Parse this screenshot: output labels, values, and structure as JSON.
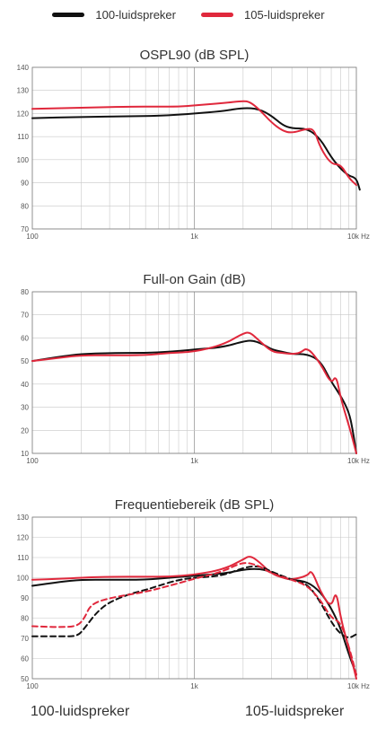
{
  "legend": {
    "items": [
      {
        "label": "100-luidspreker",
        "color": "#111111"
      },
      {
        "label": "105-luidspreker",
        "color": "#e0283c"
      }
    ]
  },
  "footer": {
    "left": "100-luidspreker",
    "right": "105-luidspreker"
  },
  "chart_data": [
    {
      "type": "line",
      "title": "OSPL90 (dB SPL)",
      "x_scale": "log",
      "xlim": [
        100,
        10000
      ],
      "ylim": [
        70,
        140
      ],
      "x_ticks": [
        {
          "v": 100,
          "label": "100"
        },
        {
          "v": 1000,
          "label": "1k"
        },
        {
          "v": 10000,
          "label": "10k Hz"
        }
      ],
      "y_ticks": [
        70,
        80,
        90,
        100,
        110,
        120,
        130,
        140
      ],
      "grid": true,
      "series": [
        {
          "name": "100-luidspreker",
          "color": "#111111",
          "dashed": false,
          "x": [
            100,
            200,
            400,
            600,
            800,
            1000,
            1500,
            2000,
            2500,
            3000,
            3500,
            4000,
            5000,
            6000,
            7000,
            8000,
            9000,
            10000,
            10500
          ],
          "y": [
            118,
            118.5,
            118.8,
            119,
            119.5,
            120,
            121,
            122.5,
            122,
            119,
            115,
            113.5,
            113.5,
            109,
            101,
            96,
            93,
            92,
            87
          ]
        },
        {
          "name": "105-luidspreker",
          "color": "#e0283c",
          "dashed": false,
          "x": [
            100,
            200,
            400,
            600,
            800,
            1000,
            1500,
            2000,
            2200,
            2500,
            3000,
            3500,
            4000,
            5000,
            5500,
            6000,
            7000,
            8000,
            9000,
            10000
          ],
          "y": [
            122,
            122.5,
            123,
            123,
            123,
            123.5,
            124.5,
            125.5,
            125,
            122,
            116,
            112.5,
            111.5,
            113.5,
            113,
            105,
            98,
            98,
            92,
            89
          ]
        }
      ]
    },
    {
      "type": "line",
      "title": "Full-on Gain (dB)",
      "x_scale": "log",
      "xlim": [
        100,
        10000
      ],
      "ylim": [
        10,
        80
      ],
      "x_ticks": [
        {
          "v": 100,
          "label": "100"
        },
        {
          "v": 1000,
          "label": "1k"
        },
        {
          "v": 10000,
          "label": "10k Hz"
        }
      ],
      "y_ticks": [
        10,
        20,
        30,
        40,
        50,
        60,
        70,
        80
      ],
      "grid": true,
      "series": [
        {
          "name": "100-luidspreker",
          "color": "#111111",
          "dashed": false,
          "x": [
            100,
            150,
            200,
            300,
            500,
            700,
            1000,
            1500,
            2000,
            2300,
            2700,
            3000,
            3500,
            4000,
            5000,
            6000,
            7000,
            8000,
            9000,
            9500,
            10000
          ],
          "y": [
            50,
            52,
            53,
            53.5,
            53.5,
            54,
            55,
            56,
            58.5,
            59,
            57,
            55,
            54,
            53,
            53,
            50,
            41,
            35,
            28,
            20,
            10
          ]
        },
        {
          "name": "105-luidspreker",
          "color": "#e0283c",
          "dashed": false,
          "x": [
            100,
            150,
            200,
            300,
            500,
            700,
            1000,
            1500,
            2000,
            2200,
            2500,
            3000,
            3500,
            4000,
            4500,
            5000,
            6000,
            7000,
            7500,
            8000,
            9000,
            9500,
            10000
          ],
          "y": [
            50,
            51.5,
            52.5,
            52.5,
            52.5,
            53.5,
            54,
            57,
            62,
            62.5,
            59,
            54,
            53.5,
            53,
            53.5,
            56,
            49,
            40,
            44,
            34,
            22,
            16,
            10
          ]
        }
      ]
    },
    {
      "type": "line",
      "title": "Frequentiebereik (dB SPL)",
      "x_scale": "log",
      "xlim": [
        100,
        10000
      ],
      "ylim": [
        50,
        130
      ],
      "x_ticks": [
        {
          "v": 100,
          "label": "100"
        },
        {
          "v": 1000,
          "label": "1k"
        },
        {
          "v": 10000,
          "label": "10k Hz"
        }
      ],
      "y_ticks": [
        50,
        60,
        70,
        80,
        90,
        100,
        110,
        120,
        130
      ],
      "grid": true,
      "series": [
        {
          "name": "100-luidspreker",
          "color": "#111111",
          "dashed": false,
          "x": [
            100,
            150,
            200,
            300,
            500,
            700,
            1000,
            1500,
            2000,
            2500,
            3000,
            3500,
            4000,
            5000,
            6000,
            7000,
            8000,
            9000,
            10000
          ],
          "y": [
            96,
            98,
            99,
            99,
            99,
            100,
            101,
            102,
            104,
            104.5,
            103,
            100,
            99,
            98,
            93,
            85,
            75,
            62,
            52
          ]
        },
        {
          "name": "105-luidspreker",
          "color": "#e0283c",
          "dashed": false,
          "x": [
            100,
            150,
            200,
            300,
            500,
            700,
            1000,
            1500,
            2000,
            2200,
            2500,
            3000,
            3500,
            4000,
            5000,
            5300,
            6000,
            7000,
            7500,
            8000,
            9000,
            10000
          ],
          "y": [
            99,
            99.5,
            100,
            100.5,
            100.5,
            100.5,
            101.5,
            104,
            109,
            111,
            108,
            102,
            100,
            99,
            101,
            104,
            93,
            85,
            94,
            80,
            65,
            50
          ]
        },
        {
          "name": "100-luidspreker",
          "color": "#111111",
          "dashed": true,
          "x": [
            100,
            150,
            190,
            210,
            250,
            300,
            400,
            500,
            600,
            800,
            1000,
            1500,
            2000,
            2500,
            3000,
            4000,
            5000,
            6000,
            7000,
            8000,
            9000,
            10000
          ],
          "y": [
            71,
            71,
            71,
            75,
            83,
            88,
            92,
            94,
            96,
            99,
            100,
            101,
            105,
            106,
            103,
            99,
            97,
            88,
            78,
            72,
            70,
            72
          ]
        },
        {
          "name": "105-luidspreker",
          "color": "#e0283c",
          "dashed": true,
          "x": [
            100,
            150,
            190,
            210,
            230,
            300,
            500,
            700,
            1000,
            1500,
            2000,
            2500,
            3000,
            4000,
            5000,
            6000,
            7000,
            8000,
            9000,
            10000
          ],
          "y": [
            76,
            75.5,
            76,
            80,
            87,
            90,
            93,
            96,
            99.5,
            103,
            108,
            106,
            102,
            99,
            96,
            89,
            80,
            78,
            66,
            52
          ]
        }
      ]
    }
  ]
}
